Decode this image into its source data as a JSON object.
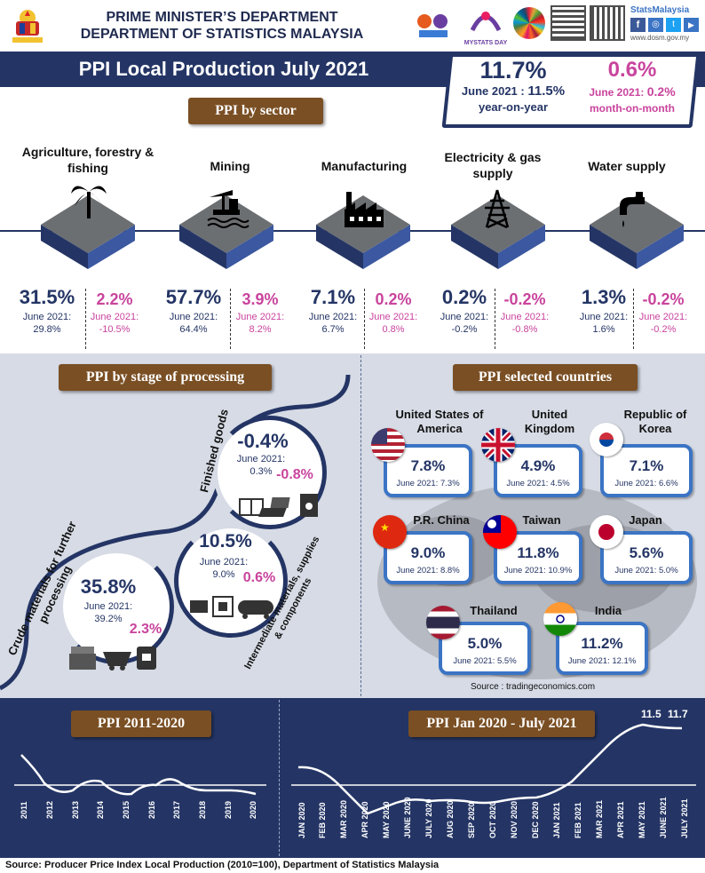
{
  "header": {
    "line1": "PRIME MINISTER’S DEPARTMENT",
    "line2": "DEPARTMENT OF STATISTICS MALAYSIA",
    "brand": "StatsMalaysia",
    "website": "www.dosm.gov.my",
    "mystats": "MYSTATS DAY"
  },
  "title": "PPI Local Production July 2021",
  "headline": {
    "yoy_value": "11.7%",
    "yoy_prev_label": "June 2021 :",
    "yoy_prev": "11.5%",
    "yoy_label": "year-on-year",
    "mom_value": "0.6%",
    "mom_prev_label": "June 2021:",
    "mom_prev": "0.2%",
    "mom_label": "month-on-month"
  },
  "sector_section_title": "PPI by sector",
  "sectors": [
    {
      "name": "Agriculture, forestry & fishing",
      "yoy": "31.5%",
      "yoy_prev": "June 2021:",
      "yoy_prev_val": "29.8%",
      "mom": "2.2%",
      "mom_prev": "June 2021:",
      "mom_prev_val": "-10.5%"
    },
    {
      "name": "Mining",
      "yoy": "57.7%",
      "yoy_prev": "June 2021:",
      "yoy_prev_val": "64.4%",
      "mom": "3.9%",
      "mom_prev": "June 2021:",
      "mom_prev_val": "8.2%"
    },
    {
      "name": "Manufacturing",
      "yoy": "7.1%",
      "yoy_prev": "June 2021:",
      "yoy_prev_val": "6.7%",
      "mom": "0.2%",
      "mom_prev": "June 2021:",
      "mom_prev_val": "0.8%"
    },
    {
      "name": "Electricity & gas supply",
      "yoy": "0.2%",
      "yoy_prev": "June 2021:",
      "yoy_prev_val": "-0.2%",
      "mom": "-0.2%",
      "mom_prev": "June 2021:",
      "mom_prev_val": "-0.8%"
    },
    {
      "name": "Water supply",
      "yoy": "1.3%",
      "yoy_prev": "June 2021:",
      "yoy_prev_val": "1.6%",
      "mom": "-0.2%",
      "mom_prev": "June 2021:",
      "mom_prev_val": "-0.2%"
    }
  ],
  "stage_section_title": "PPI by stage of processing",
  "stages": {
    "finished": {
      "label": "Finished goods",
      "yoy": "-0.4%",
      "prev_label": "June 2021:",
      "prev": "0.3%",
      "mom": "-0.8%"
    },
    "intermediate": {
      "label": "Intermediate materials, supplies & components",
      "yoy": "10.5%",
      "prev_label": "June 2021:",
      "prev": "9.0%",
      "mom": "0.6%"
    },
    "crude": {
      "label": "Crude materials for further processing",
      "yoy": "35.8%",
      "prev_label": "June 2021:",
      "prev": "39.2%",
      "mom": "2.3%"
    }
  },
  "countries_section_title": "PPI selected countries",
  "countries": [
    {
      "name": "United States of America",
      "value": "7.8%",
      "prev": "June 2021: 7.3%"
    },
    {
      "name": "United Kingdom",
      "value": "4.9%",
      "prev": "June 2021: 4.5%"
    },
    {
      "name": "Republic of Korea",
      "value": "7.1%",
      "prev": "June 2021: 6.6%"
    },
    {
      "name": "P.R. China",
      "value": "9.0%",
      "prev": "June 2021: 8.8%"
    },
    {
      "name": "Taiwan",
      "value": "11.8%",
      "prev": "June 2021: 10.9%"
    },
    {
      "name": "Japan",
      "value": "5.6%",
      "prev": "June 2021: 5.0%"
    },
    {
      "name": "Thailand",
      "value": "5.0%",
      "prev": "June 2021: 5.5%"
    },
    {
      "name": "India",
      "value": "11.2%",
      "prev": "June 2021: 12.1%"
    }
  ],
  "countries_source": "Source : tradingeconomics.com",
  "chart1": {
    "title": "PPI 2011-2020",
    "years": [
      "2011",
      "2012",
      "2013",
      "2014",
      "2015",
      "2016",
      "2017",
      "2018",
      "2019",
      "2020"
    ]
  },
  "chart2": {
    "title": "PPI Jan 2020 - July 2021",
    "months": [
      "JAN 2020",
      "FEB 2020",
      "MAR 2020",
      "APR 2020",
      "MAY 2020",
      "JUNE 2020",
      "JULY 2020",
      "AUG 2020",
      "SEP 2020",
      "OCT 2020",
      "NOV 2020",
      "DEC 2020",
      "JAN 2021",
      "FEB 2021",
      "MAR 2021",
      "APR 2021",
      "MAY 2021",
      "JUNE 2021",
      "JULY 2021"
    ],
    "label_june": "11.5",
    "label_july": "11.7"
  },
  "footer": "Source: Producer Price Index Local Production (2010=100),  Department of Statistics Malaysia",
  "colors": {
    "navy": "#243565",
    "pink": "#c9449d",
    "blue": "#3b74c4",
    "wood": "#7a4f24"
  }
}
